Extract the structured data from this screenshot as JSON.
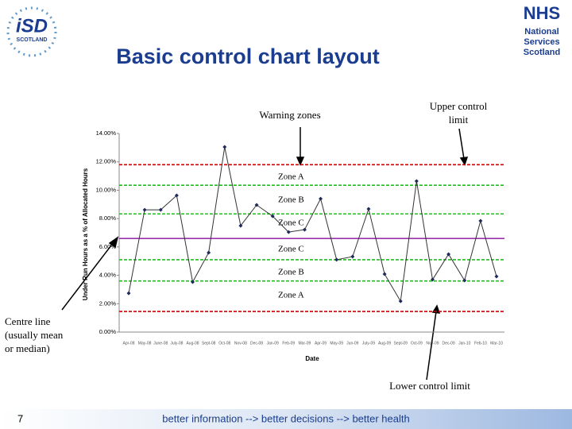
{
  "header": {
    "left_logo": [
      "iSD",
      "SCOTLAND"
    ],
    "right_logo": [
      "NHS",
      "National",
      "Services",
      "Scotland"
    ]
  },
  "title": "Basic control chart layout",
  "annotations": {
    "warning": "Warning zones",
    "ucl": [
      "Upper control",
      "limit"
    ],
    "centre": [
      "Centre line",
      "(usually mean",
      "or median)"
    ],
    "lcl": "Lower control limit"
  },
  "zones": [
    "Zone A",
    "Zone B",
    "Zone C",
    "Zone C",
    "Zone B",
    "Zone A"
  ],
  "chart_data": {
    "type": "line",
    "ylabel": "Under Run Hours as a % of Allocated Hours",
    "xlabel": "Date",
    "categories": [
      "Apr-08",
      "May-08",
      "June-08",
      "July-08",
      "Aug-08",
      "Sept-08",
      "Oct-08",
      "Nov-08",
      "Dec-08",
      "Jan-09",
      "Feb-09",
      "Mar-09",
      "Apr-09",
      "May-09",
      "Jun-09",
      "July-09",
      "Aug-09",
      "Sept-09",
      "Oct-09",
      "Nov-09",
      "Dec-09",
      "Jan-10",
      "Feb-10",
      "Mar-10"
    ],
    "values": [
      2.74,
      8.62,
      8.62,
      9.63,
      3.53,
      5.6,
      13.05,
      7.5,
      8.96,
      8.17,
      7.05,
      7.22,
      9.4,
      5.1,
      5.32,
      8.68,
      4.09,
      2.18,
      10.64,
      3.7,
      5.49,
      3.64,
      7.84,
      3.92
    ],
    "color": "#333333",
    "marker_color": "#1f2a5a",
    "ylim": [
      0,
      14
    ],
    "yticks": [
      {
        "value": 0,
        "label": "0.00%"
      },
      {
        "value": 2,
        "label": "2.00%"
      },
      {
        "value": 4,
        "label": "4.00%"
      },
      {
        "value": 6,
        "label": "6.00%"
      },
      {
        "value": 8,
        "label": "8.00%"
      },
      {
        "value": 10,
        "label": "10.00%"
      },
      {
        "value": 12,
        "label": "12.00%"
      },
      {
        "value": 14,
        "label": "14.00%"
      }
    ],
    "reference_lines": [
      {
        "value": 11.8,
        "color": "#cc0000",
        "dashed": true
      },
      {
        "value": 10.35,
        "color": "#22bb22",
        "dashed": true
      },
      {
        "value": 8.33,
        "color": "#22bb22",
        "dashed": true
      },
      {
        "value": 6.6,
        "color": "#9933aa",
        "dashed": false
      },
      {
        "value": 5.1,
        "color": "#22bb22",
        "dashed": true
      },
      {
        "value": 3.6,
        "color": "#22bb22",
        "dashed": true
      },
      {
        "value": 1.45,
        "color": "#cc0000",
        "dashed": true
      }
    ]
  },
  "footer": {
    "page": "7",
    "tagline": "better information --> better decisions --> better health"
  }
}
